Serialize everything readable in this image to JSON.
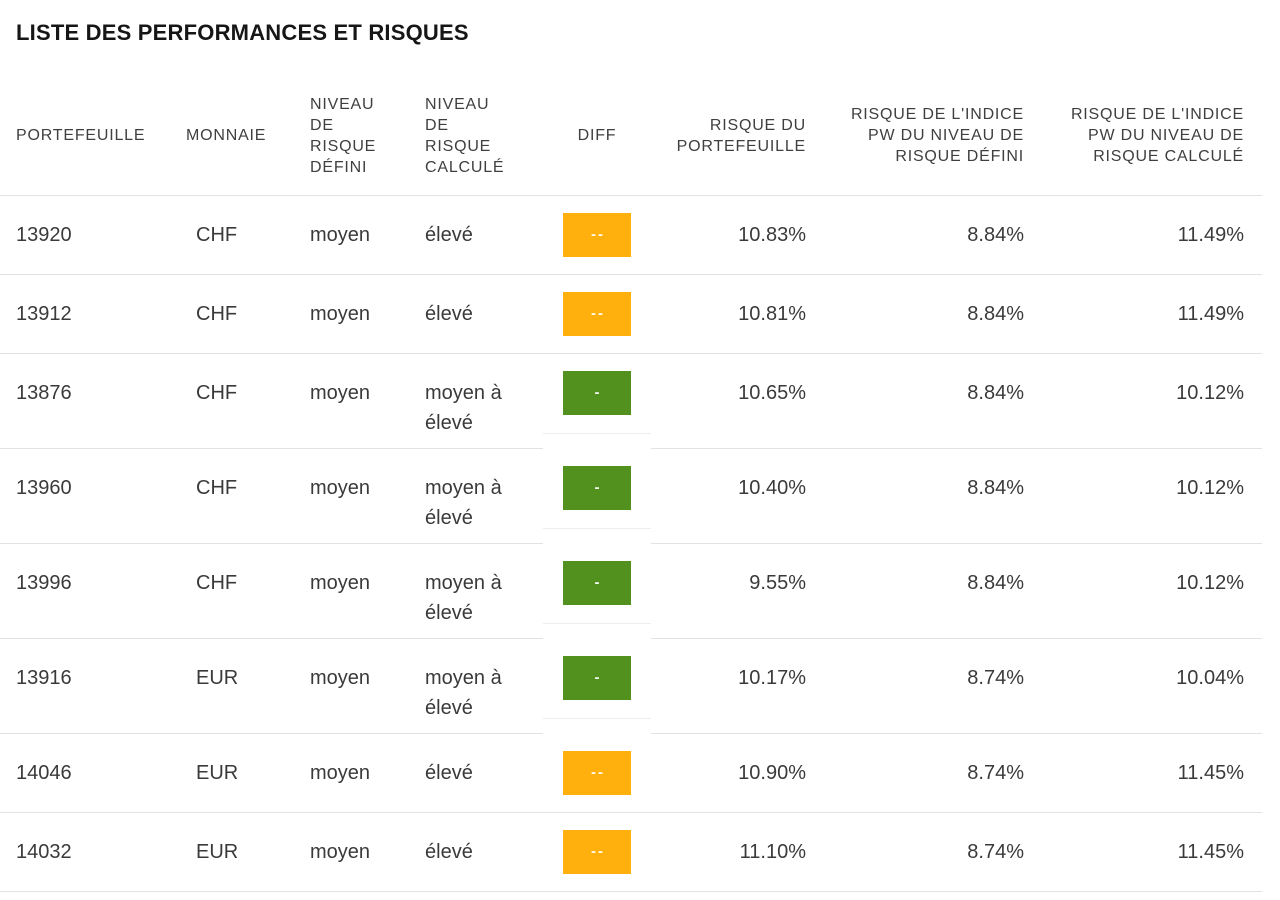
{
  "title": "LISTE DES PERFORMANCES ET RISQUES",
  "badge_colors": {
    "orange": "#FFB00C",
    "green": "#52911E"
  },
  "table": {
    "columns": [
      {
        "key": "portefeuille",
        "label": "PORTEFEUILLE"
      },
      {
        "key": "monnaie",
        "label": "MONNAIE"
      },
      {
        "key": "niveau_defini",
        "label": "NIVEAU DE RISQUE DÉFINI"
      },
      {
        "key": "niveau_calcule",
        "label": "NIVEAU DE RISQUE CALCULÉ"
      },
      {
        "key": "diff",
        "label": "DIFF"
      },
      {
        "key": "risque_portefeuille",
        "label": "RISQUE DU PORTEFEUILLE"
      },
      {
        "key": "risque_indice_defini",
        "label": "RISQUE DE L'INDICE PW DU NIVEAU DE RISQUE DÉFINI"
      },
      {
        "key": "risque_indice_calcule",
        "label": "RISQUE DE L'INDICE PW DU NIVEAU DE RISQUE CALCULÉ"
      }
    ],
    "rows": [
      {
        "portefeuille": "13920",
        "monnaie": "CHF",
        "niveau_defini": "moyen",
        "niveau_calcule": "élevé",
        "diff_label": "--",
        "diff_color": "orange",
        "risque_portefeuille": "10.83%",
        "risque_indice_defini": "8.84%",
        "risque_indice_calcule": "11.49%"
      },
      {
        "portefeuille": "13912",
        "monnaie": "CHF",
        "niveau_defini": "moyen",
        "niveau_calcule": "élevé",
        "diff_label": "--",
        "diff_color": "orange",
        "risque_portefeuille": "10.81%",
        "risque_indice_defini": "8.84%",
        "risque_indice_calcule": "11.49%"
      },
      {
        "portefeuille": "13876",
        "monnaie": "CHF",
        "niveau_defini": "moyen",
        "niveau_calcule": "moyen à élevé",
        "diff_label": "-",
        "diff_color": "green",
        "risque_portefeuille": "10.65%",
        "risque_indice_defini": "8.84%",
        "risque_indice_calcule": "10.12%"
      },
      {
        "portefeuille": "13960",
        "monnaie": "CHF",
        "niveau_defini": "moyen",
        "niveau_calcule": "moyen à élevé",
        "diff_label": "-",
        "diff_color": "green",
        "risque_portefeuille": "10.40%",
        "risque_indice_defini": "8.84%",
        "risque_indice_calcule": "10.12%"
      },
      {
        "portefeuille": "13996",
        "monnaie": "CHF",
        "niveau_defini": "moyen",
        "niveau_calcule": "moyen à élevé",
        "diff_label": "-",
        "diff_color": "green",
        "risque_portefeuille": "9.55%",
        "risque_indice_defini": "8.84%",
        "risque_indice_calcule": "10.12%"
      },
      {
        "portefeuille": "13916",
        "monnaie": "EUR",
        "niveau_defini": "moyen",
        "niveau_calcule": "moyen à élevé",
        "diff_label": "-",
        "diff_color": "green",
        "risque_portefeuille": "10.17%",
        "risque_indice_defini": "8.74%",
        "risque_indice_calcule": "10.04%"
      },
      {
        "portefeuille": "14046",
        "monnaie": "EUR",
        "niveau_defini": "moyen",
        "niveau_calcule": "élevé",
        "diff_label": "--",
        "diff_color": "orange",
        "risque_portefeuille": "10.90%",
        "risque_indice_defini": "8.74%",
        "risque_indice_calcule": "11.45%"
      },
      {
        "portefeuille": "14032",
        "monnaie": "EUR",
        "niveau_defini": "moyen",
        "niveau_calcule": "élevé",
        "diff_label": "--",
        "diff_color": "orange",
        "risque_portefeuille": "11.10%",
        "risque_indice_defini": "8.74%",
        "risque_indice_calcule": "11.45%"
      }
    ]
  }
}
